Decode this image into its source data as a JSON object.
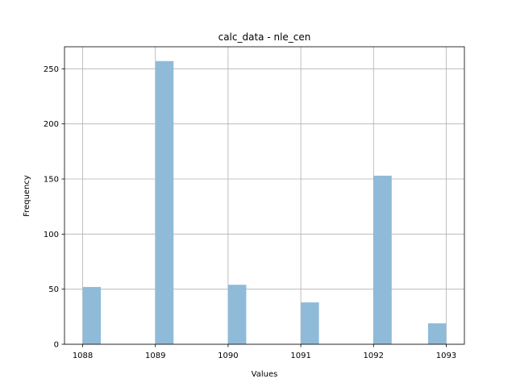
{
  "chart_data": {
    "type": "bar",
    "title": "calc_data - nle_cen",
    "xlabel": "Values",
    "ylabel": "Frequency",
    "bar_color": "#8fbbd9",
    "grid": true,
    "xlim": [
      1087.75,
      1093.25
    ],
    "ylim": [
      0,
      270
    ],
    "xticks": [
      1088,
      1089,
      1090,
      1091,
      1092,
      1093
    ],
    "yticks": [
      0,
      50,
      100,
      150,
      200,
      250
    ],
    "bin_width": 0.25,
    "bars": [
      {
        "x": 1088.125,
        "value": 52
      },
      {
        "x": 1089.125,
        "value": 257
      },
      {
        "x": 1090.125,
        "value": 54
      },
      {
        "x": 1091.125,
        "value": 38
      },
      {
        "x": 1092.125,
        "value": 153
      },
      {
        "x": 1092.875,
        "value": 19
      }
    ]
  }
}
